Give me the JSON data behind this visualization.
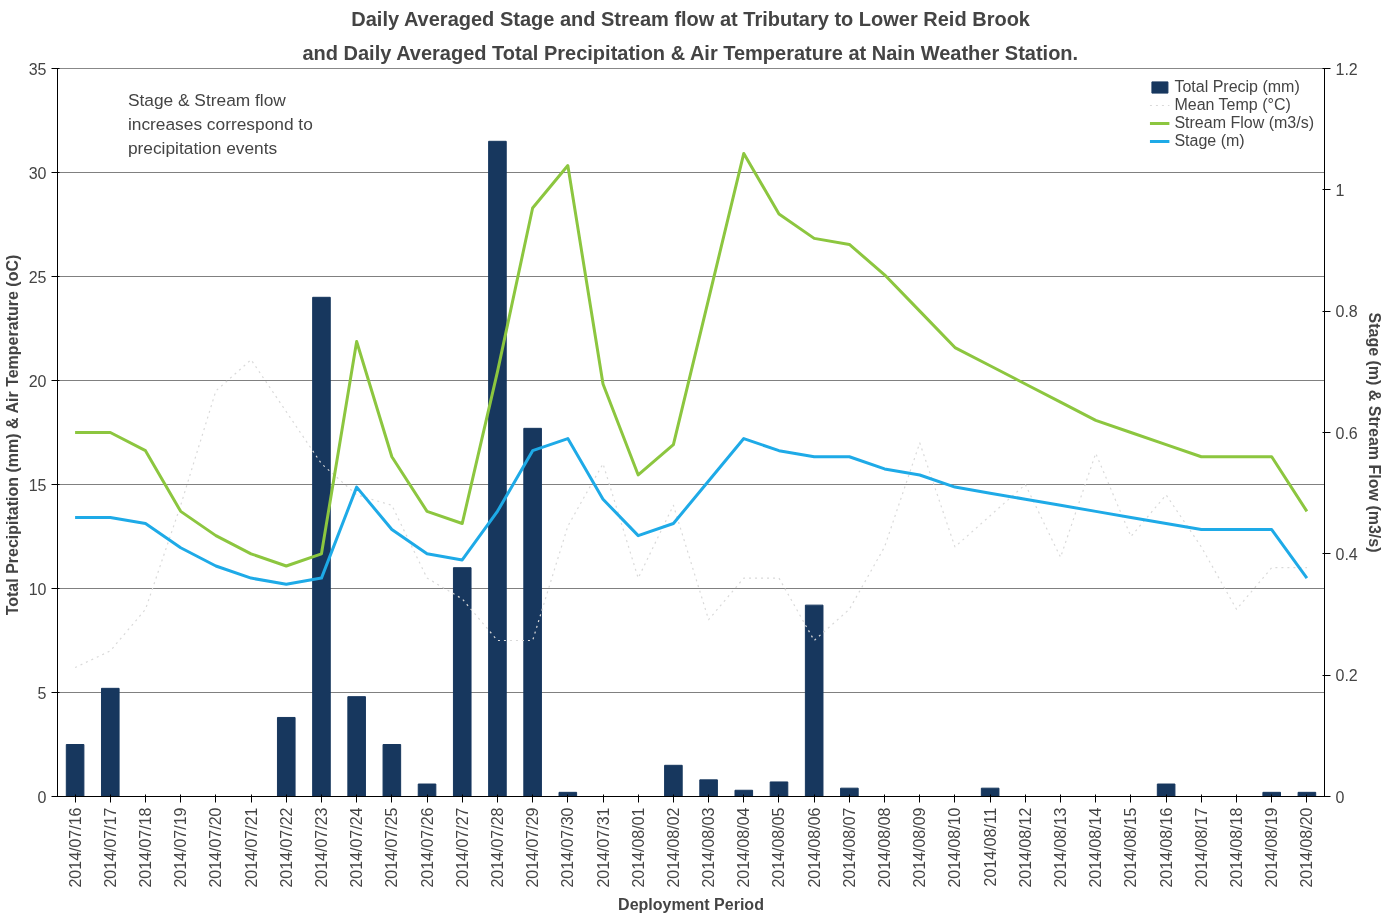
{
  "chart_data": {
    "type": "bar",
    "title": "Daily Averaged Stage and Stream flow at Tributary to Lower Reid Brook",
    "subtitle": "and Daily Averaged Total Precipitation & Air Temperature at Nain Weather Station.",
    "xlabel": "Deployment Period",
    "ylabel": "Total Precipitation  (mm) & Air Temperature (oC)",
    "y2label": "Stage (m) & Stream Flow (m3/s)",
    "categories": [
      "2014/07/16",
      "2014/07/17",
      "2014/07/18",
      "2014/07/19",
      "2014/07/20",
      "2014/07/21",
      "2014/07/22",
      "2014/07/23",
      "2014/07/24",
      "2014/07/25",
      "2014/07/26",
      "2014/07/27",
      "2014/07/28",
      "2014/07/29",
      "2014/07/30",
      "2014/07/31",
      "2014/08/01",
      "2014/08/02",
      "2014/08/03",
      "2014/08/04",
      "2014/08/05",
      "2014/08/06",
      "2014/08/07",
      "2014/08/08",
      "2014/08/09",
      "2014/08/10",
      "2014/08/11",
      "2014/08/12",
      "2014/08/13",
      "2014/08/14",
      "2014/08/15",
      "2014/08/16",
      "2014/08/17",
      "2014/08/18",
      "2014/08/19",
      "2014/08/20"
    ],
    "series": [
      {
        "name": "Total Precip (mm)",
        "color": "#17375e",
        "values": [
          2.5,
          5.2,
          0,
          0,
          0,
          0,
          3.8,
          24,
          4.8,
          2.5,
          0.6,
          11,
          31.5,
          17.7,
          0.2,
          0,
          0,
          1.5,
          0.8,
          0.3,
          0.7,
          9.2,
          0.4,
          0,
          0,
          0,
          0.4,
          0,
          0,
          0,
          0,
          0.6,
          0,
          0,
          0.2,
          0.2
        ]
      },
      {
        "name": "Mean Temp (°C)",
        "type": "line",
        "line_style": "dotted",
        "color": "#d9d9d9",
        "values": [
          6.2,
          7,
          9,
          14,
          19.5,
          21,
          18.5,
          16,
          14.5,
          14,
          10.5,
          9.5,
          7.5,
          7.5,
          13,
          16,
          10.5,
          14,
          8.5,
          10.5,
          10.5,
          7.5,
          9,
          12,
          17,
          12,
          13.5,
          15,
          11.5,
          16.5,
          12.5,
          14.5,
          12,
          9,
          11,
          11
        ]
      },
      {
        "name": "Stream Flow (m3/s)",
        "type": "line",
        "axis": "y2",
        "color": "#8cc63f",
        "values": [
          0.6,
          0.6,
          0.57,
          0.47,
          0.43,
          0.4,
          0.38,
          0.4,
          0.75,
          0.56,
          0.47,
          0.45,
          0.7,
          0.97,
          1.04,
          0.68,
          0.53,
          0.58,
          0.82,
          1.06,
          0.96,
          0.92,
          0.91,
          0.86,
          0.8,
          0.74,
          0.71,
          0.68,
          0.65,
          0.62,
          0.6,
          0.58,
          0.56,
          0.56,
          0.56,
          0.47
        ]
      },
      {
        "name": "Stage (m)",
        "type": "line",
        "axis": "y2",
        "color": "#1eaae7",
        "values": [
          0.46,
          0.46,
          0.45,
          0.41,
          0.38,
          0.36,
          0.35,
          0.36,
          0.51,
          0.44,
          0.4,
          0.39,
          0.47,
          0.57,
          0.59,
          0.49,
          0.43,
          0.45,
          0.52,
          0.59,
          0.57,
          0.56,
          0.56,
          0.54,
          0.53,
          0.51,
          0.5,
          0.49,
          0.48,
          0.47,
          0.46,
          0.45,
          0.44,
          0.44,
          0.44,
          0.36
        ]
      }
    ],
    "ylim": [
      0,
      35
    ],
    "yticks": [
      0,
      5,
      10,
      15,
      20,
      25,
      30,
      35
    ],
    "y2lim": [
      0,
      1.2
    ],
    "y2ticks": [
      0,
      0.2,
      0.4,
      0.6,
      0.8,
      1,
      1.2
    ],
    "grid": "y",
    "legend": "top right",
    "line_style": "solid",
    "annotations": [
      "Stage & Stream flow increases correspond to precipitation events"
    ]
  }
}
